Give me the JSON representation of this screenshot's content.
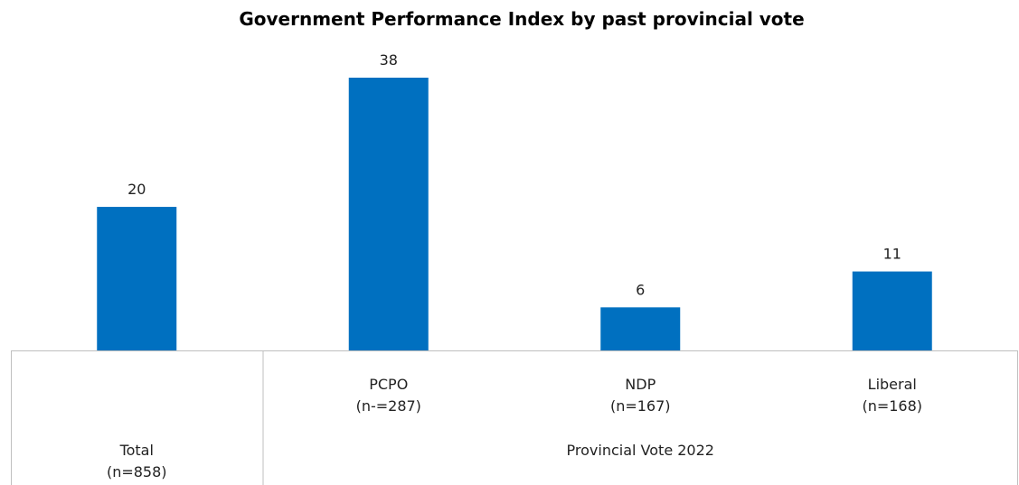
{
  "chart_data": {
    "type": "bar",
    "title": "Government Performance Index by past provincial vote",
    "xlabel": "",
    "ylabel": "",
    "ylim": [
      0,
      40
    ],
    "grid": false,
    "legend": "none",
    "bar_color": "#0070C0",
    "categories": [
      {
        "label": "Total",
        "sublabel": "(n=858)"
      },
      {
        "label": "PCPO",
        "sublabel": "(n-=287)"
      },
      {
        "label": "NDP",
        "sublabel": "(n=167)"
      },
      {
        "label": "Liberal",
        "sublabel": "(n=168)"
      }
    ],
    "values": [
      20,
      38,
      6,
      11
    ],
    "groups": [
      {
        "label": "",
        "categories": [
          0
        ]
      },
      {
        "label": "Provincial Vote 2022",
        "categories": [
          1,
          2,
          3
        ]
      }
    ]
  }
}
